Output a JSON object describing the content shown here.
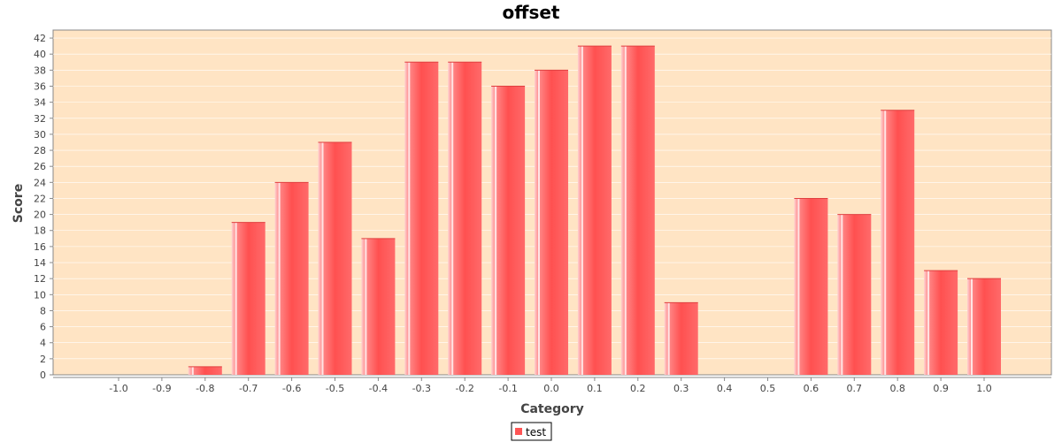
{
  "chart_data": {
    "type": "bar",
    "title": "offset",
    "xlabel": "Category",
    "ylabel": "Score",
    "categories": [
      "-1.0",
      "-0.9",
      "-0.8",
      "-0.7",
      "-0.6",
      "-0.5",
      "-0.4",
      "-0.3",
      "-0.2",
      "-0.1",
      "0.0",
      "0.1",
      "0.2",
      "0.3",
      "0.4",
      "0.5",
      "0.6",
      "0.7",
      "0.8",
      "0.9",
      "1.0"
    ],
    "series": [
      {
        "name": "test",
        "values": [
          0,
          0,
          1,
          19,
          24,
          29,
          17,
          39,
          39,
          36,
          38,
          41,
          41,
          9,
          0,
          0,
          22,
          20,
          33,
          13,
          12
        ]
      }
    ],
    "ylim": [
      0,
      43
    ],
    "yticks": [
      0,
      2,
      4,
      6,
      8,
      10,
      12,
      14,
      16,
      18,
      20,
      22,
      24,
      26,
      28,
      30,
      32,
      34,
      36,
      38,
      40,
      42
    ],
    "grid": true,
    "legend": "bottom-center",
    "colors": {
      "bar": "#ff5555",
      "plot_bg": "#ffe4c4",
      "grid": "#ffffff"
    }
  }
}
